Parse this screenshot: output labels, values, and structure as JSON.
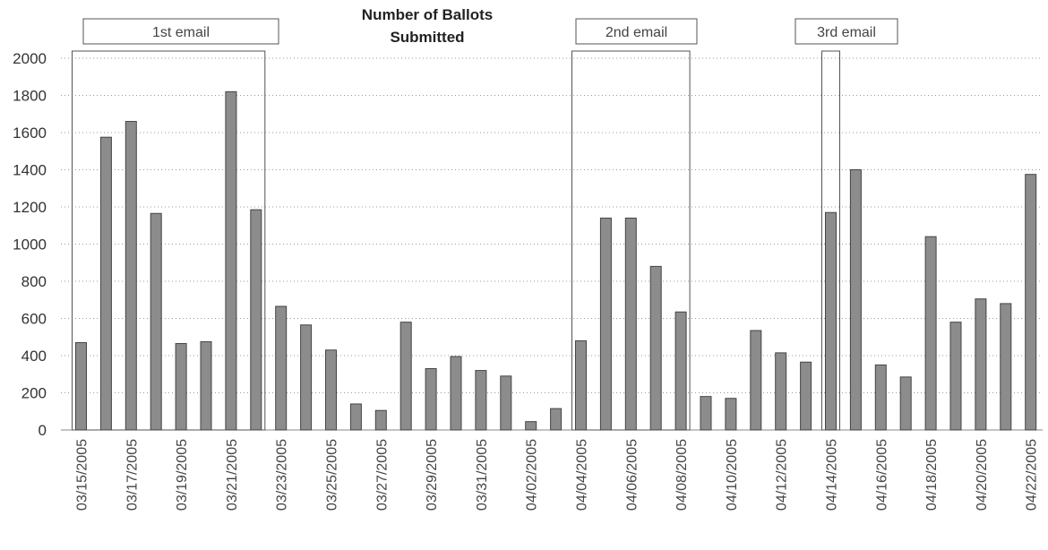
{
  "chart_data": {
    "type": "bar",
    "title": [
      "Number of Ballots",
      "Submitted"
    ],
    "xlabel": "",
    "ylabel": "",
    "ylim": [
      0,
      2000
    ],
    "yticks": [
      0,
      200,
      400,
      600,
      800,
      1000,
      1200,
      1400,
      1600,
      1800,
      2000
    ],
    "grid": true,
    "categories": [
      "03/15/2005",
      "03/16/2005",
      "03/17/2005",
      "03/18/2005",
      "03/19/2005",
      "03/20/2005",
      "03/21/2005",
      "03/22/2005",
      "03/23/2005",
      "03/24/2005",
      "03/25/2005",
      "03/26/2005",
      "03/27/2005",
      "03/28/2005",
      "03/29/2005",
      "03/30/2005",
      "03/31/2005",
      "04/01/2005",
      "04/02/2005",
      "04/03/2005",
      "04/04/2005",
      "04/05/2005",
      "04/06/2005",
      "04/07/2005",
      "04/08/2005",
      "04/09/2005",
      "04/10/2005",
      "04/11/2005",
      "04/12/2005",
      "04/13/2005",
      "04/14/2005",
      "04/15/2005",
      "04/16/2005",
      "04/17/2005",
      "04/18/2005",
      "04/19/2005",
      "04/20/2005",
      "04/21/2005",
      "04/22/2005"
    ],
    "x_tick_labels": [
      "03/15/2005",
      "03/17/2005",
      "03/19/2005",
      "03/21/2005",
      "03/23/2005",
      "03/25/2005",
      "03/27/2005",
      "03/29/2005",
      "03/31/2005",
      "04/02/2005",
      "04/04/2005",
      "04/06/2005",
      "04/08/2005",
      "04/10/2005",
      "04/12/2005",
      "04/14/2005",
      "04/16/2005",
      "04/18/2005",
      "04/20/2005",
      "04/22/2005"
    ],
    "values": [
      470,
      1575,
      1660,
      1165,
      465,
      475,
      1820,
      1185,
      665,
      565,
      430,
      140,
      105,
      580,
      330,
      395,
      320,
      290,
      45,
      115,
      480,
      1140,
      1140,
      880,
      635,
      180,
      170,
      535,
      415,
      365,
      1170,
      1400,
      350,
      285,
      1040,
      580,
      705,
      680,
      1375
    ],
    "annotations": [
      {
        "label": "1st email",
        "from": "03/15/2005",
        "to": "03/22/2005"
      },
      {
        "label": "2nd email",
        "from": "04/04/2005",
        "to": "04/08/2005"
      },
      {
        "label": "3rd email",
        "from": "04/14/2005",
        "to": "04/14/2005"
      }
    ],
    "colors": {
      "bar_fill": "#8c8c8c",
      "bar_stroke": "#444444",
      "grid": "#9a9a9a"
    }
  }
}
